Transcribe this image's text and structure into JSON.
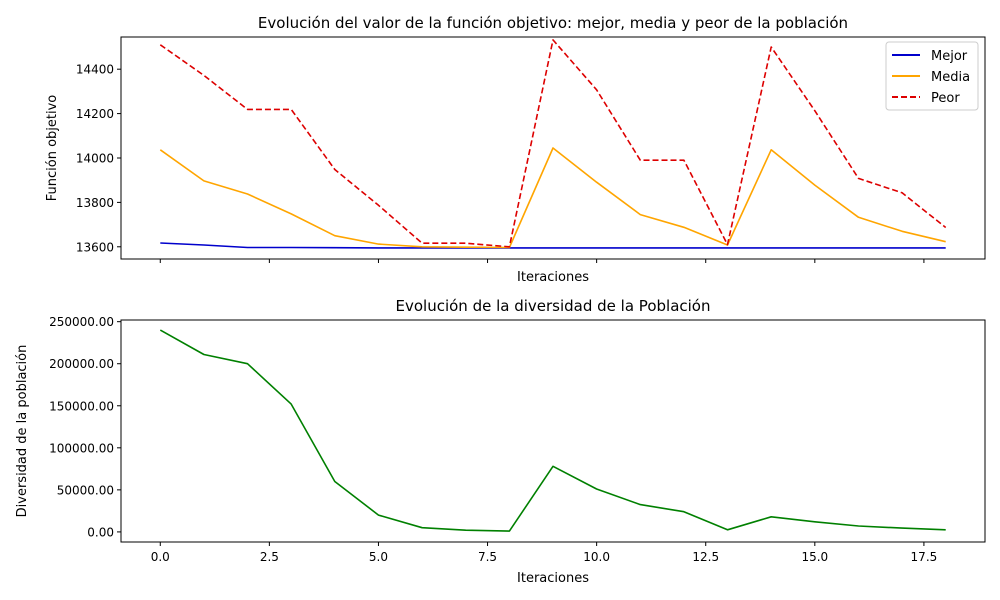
{
  "chart_data": [
    {
      "type": "line",
      "title": "Evolución del valor de la función objetivo: mejor, media y peor de la población",
      "xlabel": "Iteraciones",
      "ylabel": "Función objetivo",
      "xlim": [
        -0.9,
        18.9
      ],
      "ylim": [
        13545,
        14545
      ],
      "x": [
        0,
        1,
        2,
        3,
        4,
        5,
        6,
        7,
        8,
        9,
        10,
        11,
        12,
        13,
        14,
        15,
        16,
        17,
        18
      ],
      "x_ticks": [
        0,
        2.5,
        5,
        7.5,
        10,
        12.5,
        15,
        17.5
      ],
      "x_tick_labels_visible": false,
      "y_ticks": [
        13600,
        13800,
        14000,
        14200,
        14400
      ],
      "y_tick_labels": [
        "13600",
        "13800",
        "14000",
        "14200",
        "14400"
      ],
      "legend": "top-right",
      "grid": false,
      "series": [
        {
          "name": "Mejor",
          "color": "#0000cc",
          "style": "solid",
          "values": [
            13617,
            13608,
            13597,
            13597,
            13596,
            13595,
            13595,
            13595,
            13595,
            13595,
            13595,
            13595,
            13595,
            13595,
            13595,
            13595,
            13595,
            13595,
            13595
          ]
        },
        {
          "name": "Media",
          "color": "#ffa500",
          "style": "solid",
          "values": [
            14037,
            13897,
            13838,
            13748,
            13650,
            13612,
            13600,
            13598,
            13597,
            14045,
            13891,
            13745,
            13688,
            13608,
            14037,
            13878,
            13733,
            13670,
            13623
          ]
        },
        {
          "name": "Peor",
          "color": "#dd0000",
          "style": "dashed",
          "values": [
            14510,
            14372,
            14219,
            14219,
            13948,
            13787,
            13616,
            13616,
            13600,
            14532,
            14307,
            13990,
            13990,
            13610,
            14500,
            14213,
            13908,
            13843,
            13687
          ]
        }
      ]
    },
    {
      "type": "line",
      "title": "Evolución de la diversidad de la Población",
      "xlabel": "Iteraciones",
      "ylabel": "Diversidad de la población",
      "xlim": [
        -0.9,
        18.9
      ],
      "ylim": [
        -12000,
        252000
      ],
      "x": [
        0,
        1,
        2,
        3,
        4,
        5,
        6,
        7,
        8,
        9,
        10,
        11,
        12,
        13,
        14,
        15,
        16,
        17,
        18
      ],
      "x_ticks": [
        0,
        2.5,
        5,
        7.5,
        10,
        12.5,
        15,
        17.5
      ],
      "x_tick_labels": [
        "0.0",
        "2.5",
        "5.0",
        "7.5",
        "10.0",
        "12.5",
        "15.0",
        "17.5"
      ],
      "y_ticks": [
        0,
        50000,
        100000,
        150000,
        200000,
        250000
      ],
      "y_tick_labels": [
        "0.00",
        "50000.00",
        "100000.00",
        "150000.00",
        "200000.00",
        "250000.00"
      ],
      "grid": false,
      "series": [
        {
          "color": "#008000",
          "style": "solid",
          "values": [
            240000,
            211000,
            200000,
            152000,
            60000,
            20000,
            5000,
            2000,
            1000,
            78000,
            51000,
            32500,
            24000,
            2500,
            18000,
            12000,
            7000,
            4500,
            2500
          ]
        }
      ]
    }
  ]
}
